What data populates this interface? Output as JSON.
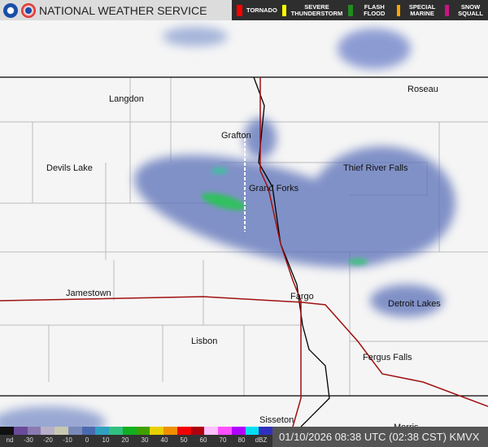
{
  "header": {
    "title": "NATIONAL WEATHER SERVICE"
  },
  "legend": [
    {
      "label": "TORNADO",
      "color": "#ff0000"
    },
    {
      "label": "SEVERE THUNDERSTORM",
      "color": "#ffff00"
    },
    {
      "label": "FLASH FLOOD",
      "color": "#228b22"
    },
    {
      "label": "SPECIAL MARINE",
      "color": "#ffa500"
    },
    {
      "label": "SNOW SQUALL",
      "color": "#c71585"
    }
  ],
  "cities": [
    "Langdon",
    "Roseau",
    "Grafton",
    "Devils Lake",
    "Thief River Falls",
    "Grand Forks",
    "Jamestown",
    "Fargo",
    "Detroit Lakes",
    "Lisbon",
    "Fergus Falls",
    "Sisseton",
    "Morris"
  ],
  "colorbar": {
    "ticks": [
      "nd",
      "-30",
      "-20",
      "-10",
      "0",
      "10",
      "20",
      "30",
      "40",
      "50",
      "60",
      "70",
      "80",
      "dBZ"
    ]
  },
  "timestamp": "01/10/2026 08:38 UTC (02:38 CST) KMVX"
}
